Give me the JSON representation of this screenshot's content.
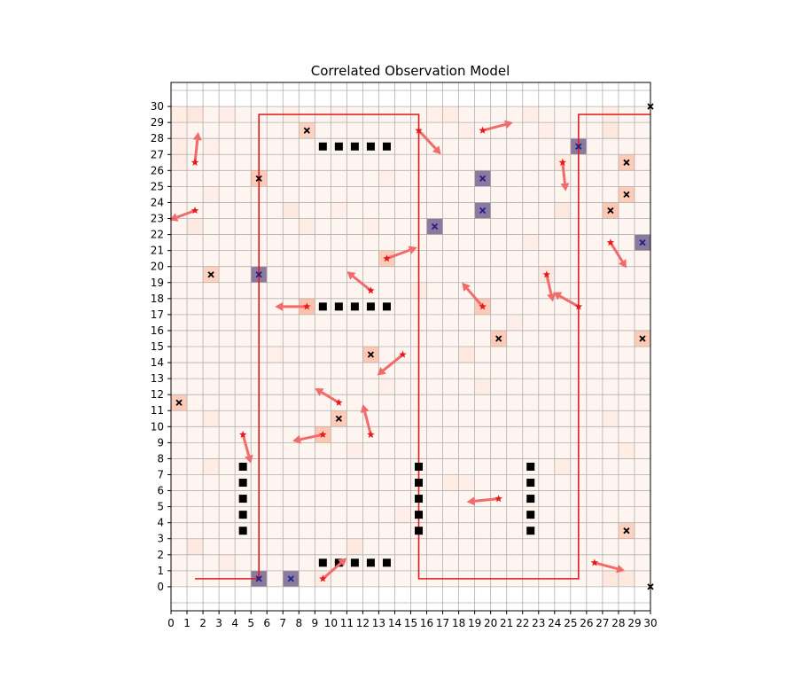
{
  "chart_data": {
    "type": "heatmap",
    "title": "Correlated Observation Model",
    "xlabel": "",
    "ylabel": "",
    "xlim": [
      0,
      30
    ],
    "ylim": [
      -1.5,
      31.5
    ],
    "grid": true,
    "grid_color": "#b0b0b0",
    "x_ticks": [
      "0",
      "1",
      "2",
      "3",
      "4",
      "5",
      "6",
      "7",
      "8",
      "9",
      "10",
      "11",
      "12",
      "13",
      "14",
      "15",
      "16",
      "17",
      "18",
      "19",
      "20",
      "21",
      "22",
      "23",
      "24",
      "25",
      "26",
      "27",
      "28",
      "29",
      "30"
    ],
    "y_ticks": [
      "0",
      "1",
      "2",
      "3",
      "4",
      "5",
      "6",
      "7",
      "8",
      "9",
      "10",
      "11",
      "12",
      "13",
      "14",
      "15",
      "16",
      "17",
      "18",
      "19",
      "20",
      "21",
      "22",
      "23",
      "24",
      "25",
      "26",
      "27",
      "28",
      "29",
      "30"
    ],
    "colors": {
      "heat_low": "#fff5f0",
      "heat_mid": "#fcbba1",
      "heat_high": "#ef3b2c",
      "cell_purple": "#8c7a9e",
      "path": "#e31a1c",
      "agent": "#e31a1c",
      "arrow": "#f26b6b",
      "obstacle": "#000000",
      "target": "#000000",
      "target_on_purple": "#1f1f8a"
    },
    "heat_cells": [
      {
        "x": 0.5,
        "y": 29.5,
        "v": 0.08
      },
      {
        "x": 1.5,
        "y": 29.5,
        "v": 0.12
      },
      {
        "x": 3.5,
        "y": 29.5,
        "v": 0.06
      },
      {
        "x": 7.5,
        "y": 29.5,
        "v": 0.05
      },
      {
        "x": 10.5,
        "y": 29.5,
        "v": 0.05
      },
      {
        "x": 16.5,
        "y": 29.5,
        "v": 0.05
      },
      {
        "x": 17.5,
        "y": 29.5,
        "v": 0.08
      },
      {
        "x": 22.5,
        "y": 29.5,
        "v": 0.06
      },
      {
        "x": 27.5,
        "y": 29.5,
        "v": 0.08
      },
      {
        "x": 8.5,
        "y": 28.5,
        "v": 0.3
      },
      {
        "x": 27.5,
        "y": 28.5,
        "v": 0.12
      },
      {
        "x": 0.5,
        "y": 28.5,
        "v": 0.05
      },
      {
        "x": 18.5,
        "y": 28.5,
        "v": 0.06
      },
      {
        "x": 23.5,
        "y": 28.5,
        "v": 0.06
      },
      {
        "x": 0.5,
        "y": 27.5,
        "v": 0.08
      },
      {
        "x": 2.5,
        "y": 27.5,
        "v": 0.05
      },
      {
        "x": 25.5,
        "y": 27.5,
        "v": 0.9,
        "purple": true
      },
      {
        "x": 28.5,
        "y": 26.5,
        "v": 0.35
      },
      {
        "x": 24.5,
        "y": 26.5,
        "v": 0.08
      },
      {
        "x": 0.5,
        "y": 26.5,
        "v": 0.06
      },
      {
        "x": 5.5,
        "y": 25.5,
        "v": 0.35
      },
      {
        "x": 19.5,
        "y": 25.5,
        "v": 0.9,
        "purple": true
      },
      {
        "x": 28.5,
        "y": 24.5,
        "v": 0.35
      },
      {
        "x": 2.5,
        "y": 24.5,
        "v": 0.06
      },
      {
        "x": 19.5,
        "y": 23.5,
        "v": 0.9,
        "purple": true
      },
      {
        "x": 27.5,
        "y": 23.5,
        "v": 0.4
      },
      {
        "x": 7.5,
        "y": 23.5,
        "v": 0.1
      },
      {
        "x": 24.5,
        "y": 23.5,
        "v": 0.12
      },
      {
        "x": 16.5,
        "y": 22.5,
        "v": 0.9,
        "purple": true
      },
      {
        "x": 1.5,
        "y": 22.5,
        "v": 0.1
      },
      {
        "x": 8.5,
        "y": 22.5,
        "v": 0.08
      },
      {
        "x": 22.5,
        "y": 21.5,
        "v": 0.06
      },
      {
        "x": 29.5,
        "y": 21.5,
        "v": 0.9,
        "purple": true
      },
      {
        "x": 13.5,
        "y": 20.5,
        "v": 0.35
      },
      {
        "x": 2.5,
        "y": 19.5,
        "v": 0.3
      },
      {
        "x": 5.5,
        "y": 19.5,
        "v": 0.9,
        "purple": true
      },
      {
        "x": 23.5,
        "y": 19.5,
        "v": 0.1
      },
      {
        "x": 15.5,
        "y": 18.5,
        "v": 0.08
      },
      {
        "x": 8.5,
        "y": 17.5,
        "v": 0.45
      },
      {
        "x": 19.5,
        "y": 17.5,
        "v": 0.35
      },
      {
        "x": 20.5,
        "y": 15.5,
        "v": 0.35
      },
      {
        "x": 29.5,
        "y": 15.5,
        "v": 0.35
      },
      {
        "x": 12.5,
        "y": 14.5,
        "v": 0.4
      },
      {
        "x": 18.5,
        "y": 14.5,
        "v": 0.1
      },
      {
        "x": 19.5,
        "y": 12.5,
        "v": 0.08
      },
      {
        "x": 0.5,
        "y": 11.5,
        "v": 0.35
      },
      {
        "x": 10.5,
        "y": 10.5,
        "v": 0.35
      },
      {
        "x": 9.5,
        "y": 9.5,
        "v": 0.4
      },
      {
        "x": 2.5,
        "y": 10.5,
        "v": 0.08
      },
      {
        "x": 27.5,
        "y": 10.5,
        "v": 0.06
      },
      {
        "x": 2.5,
        "y": 7.5,
        "v": 0.08
      },
      {
        "x": 24.5,
        "y": 7.5,
        "v": 0.08
      },
      {
        "x": 28.5,
        "y": 8.5,
        "v": 0.08
      },
      {
        "x": 17.5,
        "y": 6.5,
        "v": 0.08
      },
      {
        "x": 18.5,
        "y": 6.5,
        "v": 0.06
      },
      {
        "x": 28.5,
        "y": 3.5,
        "v": 0.3
      },
      {
        "x": 1.5,
        "y": 2.5,
        "v": 0.1
      },
      {
        "x": 11.5,
        "y": 2.5,
        "v": 0.1
      },
      {
        "x": 5.5,
        "y": 0.5,
        "v": 0.9,
        "purple": true
      },
      {
        "x": 7.5,
        "y": 0.5,
        "v": 0.9,
        "purple": true
      },
      {
        "x": 9.5,
        "y": 0.5,
        "v": 0.08
      },
      {
        "x": 27.5,
        "y": 0.5,
        "v": 0.12
      },
      {
        "x": 28.5,
        "y": 0.5,
        "v": 0.1
      },
      {
        "x": 3.5,
        "y": 1.5,
        "v": 0.06
      },
      {
        "x": 14.5,
        "y": 4.5,
        "v": 0.06
      },
      {
        "x": 11.5,
        "y": 8.5,
        "v": 0.06
      },
      {
        "x": 13.5,
        "y": 12.5,
        "v": 0.05
      },
      {
        "x": 6.5,
        "y": 14.5,
        "v": 0.05
      },
      {
        "x": 21.5,
        "y": 16.5,
        "v": 0.06
      },
      {
        "x": 12.5,
        "y": 22.5,
        "v": 0.05
      },
      {
        "x": 10.5,
        "y": 23.5,
        "v": 0.05
      },
      {
        "x": 13.5,
        "y": 25.5,
        "v": 0.05
      }
    ],
    "obstacles": [
      {
        "x": 9.5,
        "y": 27.5
      },
      {
        "x": 10.5,
        "y": 27.5
      },
      {
        "x": 11.5,
        "y": 27.5
      },
      {
        "x": 12.5,
        "y": 27.5
      },
      {
        "x": 13.5,
        "y": 27.5
      },
      {
        "x": 9.5,
        "y": 17.5
      },
      {
        "x": 10.5,
        "y": 17.5
      },
      {
        "x": 11.5,
        "y": 17.5
      },
      {
        "x": 12.5,
        "y": 17.5
      },
      {
        "x": 13.5,
        "y": 17.5
      },
      {
        "x": 4.5,
        "y": 7.5
      },
      {
        "x": 4.5,
        "y": 6.5
      },
      {
        "x": 4.5,
        "y": 5.5
      },
      {
        "x": 4.5,
        "y": 4.5
      },
      {
        "x": 4.5,
        "y": 3.5
      },
      {
        "x": 15.5,
        "y": 7.5
      },
      {
        "x": 15.5,
        "y": 6.5
      },
      {
        "x": 15.5,
        "y": 5.5
      },
      {
        "x": 15.5,
        "y": 4.5
      },
      {
        "x": 15.5,
        "y": 3.5
      },
      {
        "x": 22.5,
        "y": 7.5
      },
      {
        "x": 22.5,
        "y": 6.5
      },
      {
        "x": 22.5,
        "y": 5.5
      },
      {
        "x": 22.5,
        "y": 4.5
      },
      {
        "x": 22.5,
        "y": 3.5
      },
      {
        "x": 9.5,
        "y": 1.5
      },
      {
        "x": 10.5,
        "y": 1.5
      },
      {
        "x": 11.5,
        "y": 1.5
      },
      {
        "x": 12.5,
        "y": 1.5
      },
      {
        "x": 13.5,
        "y": 1.5
      }
    ],
    "targets": [
      {
        "x": 8.5,
        "y": 28.5
      },
      {
        "x": 25.5,
        "y": 27.5
      },
      {
        "x": 28.5,
        "y": 26.5
      },
      {
        "x": 5.5,
        "y": 25.5
      },
      {
        "x": 19.5,
        "y": 25.5
      },
      {
        "x": 28.5,
        "y": 24.5
      },
      {
        "x": 19.5,
        "y": 23.5
      },
      {
        "x": 27.5,
        "y": 23.5
      },
      {
        "x": 16.5,
        "y": 22.5
      },
      {
        "x": 29.5,
        "y": 21.5
      },
      {
        "x": 2.5,
        "y": 19.5
      },
      {
        "x": 5.5,
        "y": 19.5
      },
      {
        "x": 20.5,
        "y": 15.5
      },
      {
        "x": 29.5,
        "y": 15.5
      },
      {
        "x": 12.5,
        "y": 14.5
      },
      {
        "x": 0.5,
        "y": 11.5
      },
      {
        "x": 10.5,
        "y": 10.5
      },
      {
        "x": 28.5,
        "y": 3.5
      },
      {
        "x": 5.5,
        "y": 0.5
      },
      {
        "x": 7.5,
        "y": 0.5
      },
      {
        "x": 30,
        "y": 30
      },
      {
        "x": 30,
        "y": 0
      }
    ],
    "agents": [
      {
        "x": 1.5,
        "y": 26.5,
        "dx": 0.2,
        "dy": 1.9
      },
      {
        "x": 1.5,
        "y": 23.5,
        "dx": -1.6,
        "dy": -0.6
      },
      {
        "x": 8.5,
        "y": 17.5,
        "dx": -2.0,
        "dy": 0.0
      },
      {
        "x": 12.5,
        "y": 18.5,
        "dx": -1.5,
        "dy": 1.2
      },
      {
        "x": 13.5,
        "y": 20.5,
        "dx": 1.9,
        "dy": 0.7
      },
      {
        "x": 15.5,
        "y": 28.5,
        "dx": 1.4,
        "dy": -1.5
      },
      {
        "x": 19.5,
        "y": 28.5,
        "dx": 1.9,
        "dy": 0.5
      },
      {
        "x": 24.5,
        "y": 26.5,
        "dx": 0.2,
        "dy": -1.8
      },
      {
        "x": 27.5,
        "y": 21.5,
        "dx": 1.0,
        "dy": -1.6
      },
      {
        "x": 23.5,
        "y": 19.5,
        "dx": 0.4,
        "dy": -1.7
      },
      {
        "x": 25.5,
        "y": 17.5,
        "dx": -1.6,
        "dy": 0.9
      },
      {
        "x": 19.5,
        "y": 17.5,
        "dx": -1.3,
        "dy": 1.5
      },
      {
        "x": 14.5,
        "y": 14.5,
        "dx": -1.6,
        "dy": -1.3
      },
      {
        "x": 10.5,
        "y": 11.5,
        "dx": -1.5,
        "dy": 0.9
      },
      {
        "x": 9.5,
        "y": 9.5,
        "dx": -1.9,
        "dy": -0.4
      },
      {
        "x": 12.5,
        "y": 9.5,
        "dx": -0.5,
        "dy": 1.9
      },
      {
        "x": 4.5,
        "y": 9.5,
        "dx": 0.5,
        "dy": -1.8
      },
      {
        "x": 20.5,
        "y": 5.5,
        "dx": -2.0,
        "dy": -0.2
      },
      {
        "x": 26.5,
        "y": 1.5,
        "dx": 1.9,
        "dy": -0.5
      },
      {
        "x": 9.5,
        "y": 0.5,
        "dx": 1.5,
        "dy": 1.3
      }
    ],
    "paths": [
      {
        "points": [
          [
            1.5,
            0.5
          ],
          [
            5.5,
            0.5
          ],
          [
            5.5,
            29.5
          ],
          [
            15.5,
            29.5
          ],
          [
            15.5,
            0.5
          ],
          [
            25.5,
            0.5
          ],
          [
            25.5,
            29.5
          ],
          [
            30,
            29.5
          ]
        ]
      }
    ]
  }
}
